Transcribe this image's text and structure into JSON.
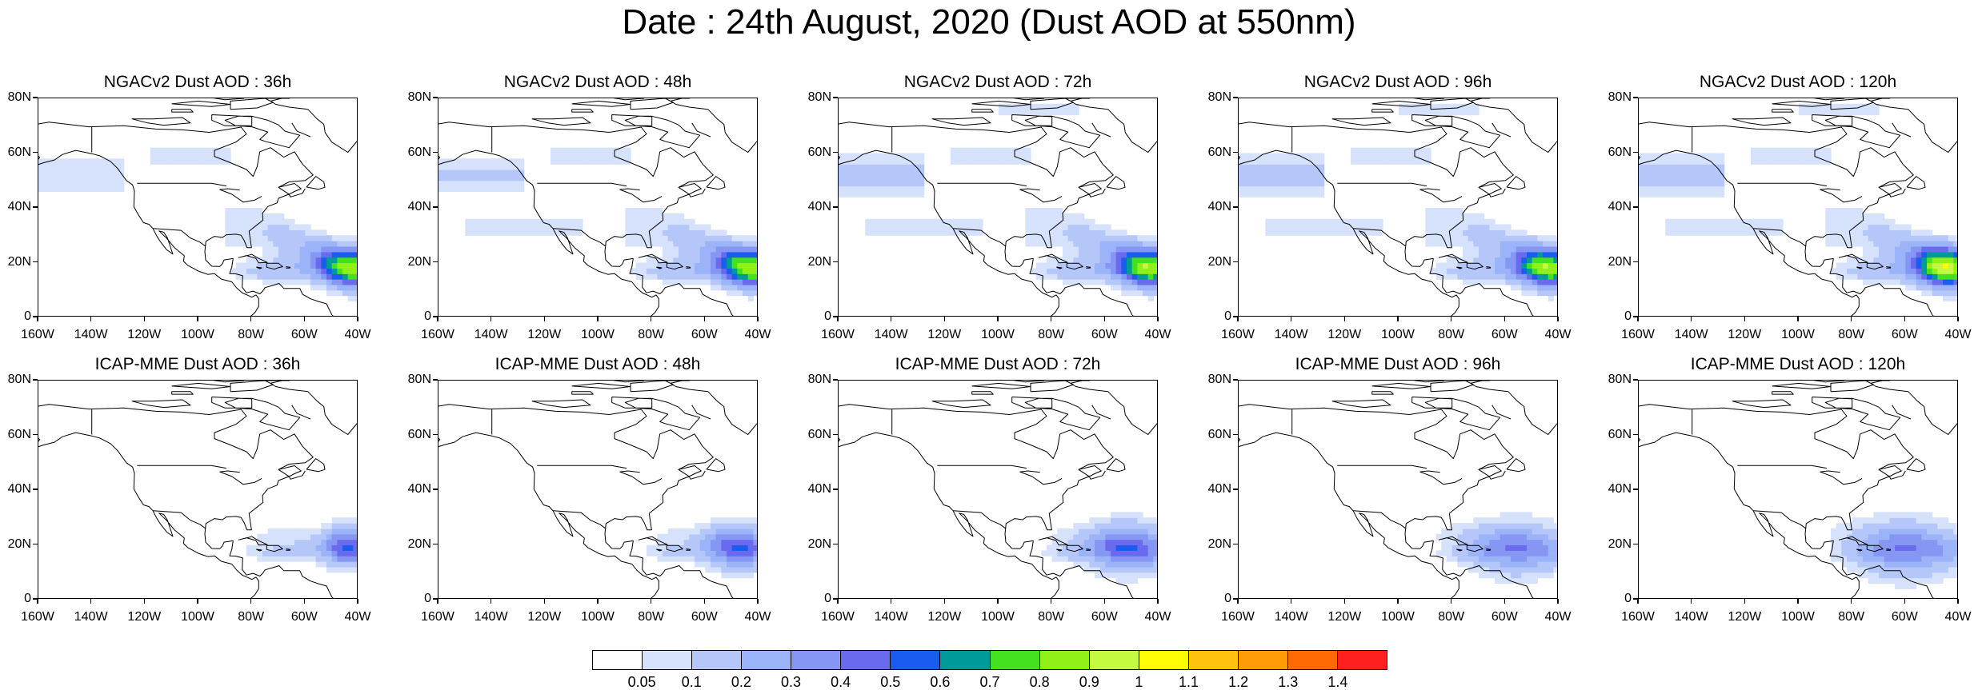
{
  "title": "Date : 24th August, 2020 (Dust AOD at 550nm)",
  "map": {
    "lon_range": [
      -160,
      -40
    ],
    "lat_range": [
      0,
      80
    ],
    "x_ticks": [
      "160W",
      "140W",
      "120W",
      "100W",
      "80W",
      "60W",
      "40W"
    ],
    "y_ticks": [
      "0",
      "20N",
      "40N",
      "60N",
      "80N"
    ]
  },
  "rows": [
    {
      "model": "NGACv2",
      "panels": [
        {
          "title": "NGACv2 Dust AOD : 36h",
          "lead": 36,
          "atlantic_peak": 0.6,
          "pacific_plume": 0.1
        },
        {
          "title": "NGACv2 Dust AOD : 48h",
          "lead": 48,
          "atlantic_peak": 0.6,
          "pacific_plume": 0.1
        },
        {
          "title": "NGACv2 Dust AOD : 72h",
          "lead": 72,
          "atlantic_peak": 0.6,
          "pacific_plume": 0.1
        },
        {
          "title": "NGACv2 Dust AOD : 96h",
          "lead": 96,
          "atlantic_peak": 0.6,
          "pacific_plume": 0.1
        },
        {
          "title": "NGACv2 Dust AOD : 120h",
          "lead": 120,
          "atlantic_peak": 0.7,
          "pacific_plume": 0.1
        }
      ]
    },
    {
      "model": "ICAP-MME",
      "panels": [
        {
          "title": "ICAP-MME Dust AOD : 36h",
          "lead": 36,
          "atlantic_peak": 0.4,
          "pacific_plume": 0
        },
        {
          "title": "ICAP-MME Dust AOD : 48h",
          "lead": 48,
          "atlantic_peak": 0.4,
          "pacific_plume": 0
        },
        {
          "title": "ICAP-MME Dust AOD : 72h",
          "lead": 72,
          "atlantic_peak": 0.4,
          "pacific_plume": 0
        },
        {
          "title": "ICAP-MME Dust AOD : 96h",
          "lead": 96,
          "atlantic_peak": 0.3,
          "pacific_plume": 0
        },
        {
          "title": "ICAP-MME Dust AOD : 120h",
          "lead": 120,
          "atlantic_peak": 0.3,
          "pacific_plume": 0
        }
      ]
    }
  ],
  "colorbar": {
    "colors": [
      "#ffffff",
      "#d6e2fb",
      "#b5c7f8",
      "#9bb3f8",
      "#8596f3",
      "#6a6aee",
      "#1a5cf0",
      "#009a9a",
      "#43e11f",
      "#90f018",
      "#c4fb41",
      "#fffc05",
      "#ffc20e",
      "#ff9c08",
      "#ff6a05",
      "#ff1f1f"
    ],
    "labels": [
      "0.05",
      "0.1",
      "0.2",
      "0.3",
      "0.4",
      "0.5",
      "0.6",
      "0.7",
      "0.8",
      "0.9",
      "1",
      "1.1",
      "1.2",
      "1.3",
      "1.4"
    ]
  }
}
